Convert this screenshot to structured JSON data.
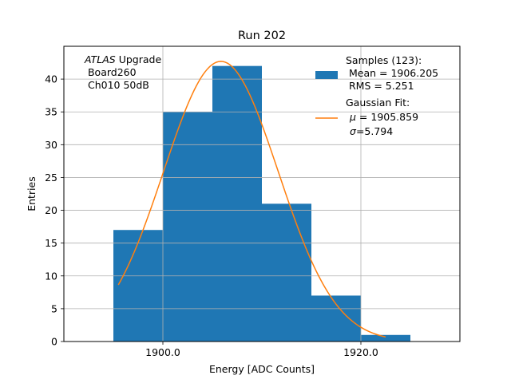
{
  "chart_data": {
    "type": "histogram",
    "title": "Run 202",
    "xlabel": "Energy [ADC Counts]",
    "ylabel": "Entries",
    "xlim": [
      1890,
      1930
    ],
    "ylim": [
      0,
      45
    ],
    "x_ticks": [
      {
        "value": 1900,
        "label": "1900.0"
      },
      {
        "value": 1920,
        "label": "1920.0"
      }
    ],
    "y_ticks": [
      0,
      5,
      10,
      15,
      20,
      25,
      30,
      35,
      40
    ],
    "grid": true,
    "bar_color": "#1f77b4",
    "fit_color": "#ff7f0e",
    "bins": [
      {
        "x0": 1895,
        "x1": 1900,
        "count": 17
      },
      {
        "x0": 1900,
        "x1": 1905,
        "count": 35
      },
      {
        "x0": 1905,
        "x1": 1910,
        "count": 42
      },
      {
        "x0": 1910,
        "x1": 1915,
        "count": 21
      },
      {
        "x0": 1915,
        "x1": 1920,
        "count": 7
      },
      {
        "x0": 1920,
        "x1": 1925,
        "count": 1
      }
    ],
    "fit": {
      "mu": 1905.859,
      "sigma": 5.794,
      "amplitude": 42.7,
      "x_range": [
        1895.5,
        1922.5
      ]
    },
    "annotation": {
      "italic": "ATLAS",
      "rest": " Upgrade",
      "line2": " Board260",
      "line3": " Ch010 50dB"
    },
    "legend": {
      "position": "top-right",
      "samples": {
        "line1": "Samples (123):",
        "line2": " Mean = 1906.205",
        "line3": " RMS = 5.251"
      },
      "gaussian": {
        "line1": "Gaussian Fit:",
        "mu_label": "μ",
        "mu_value": " = 1905.859",
        "sigma_label": "σ",
        "sigma_value": "=5.794"
      }
    }
  }
}
